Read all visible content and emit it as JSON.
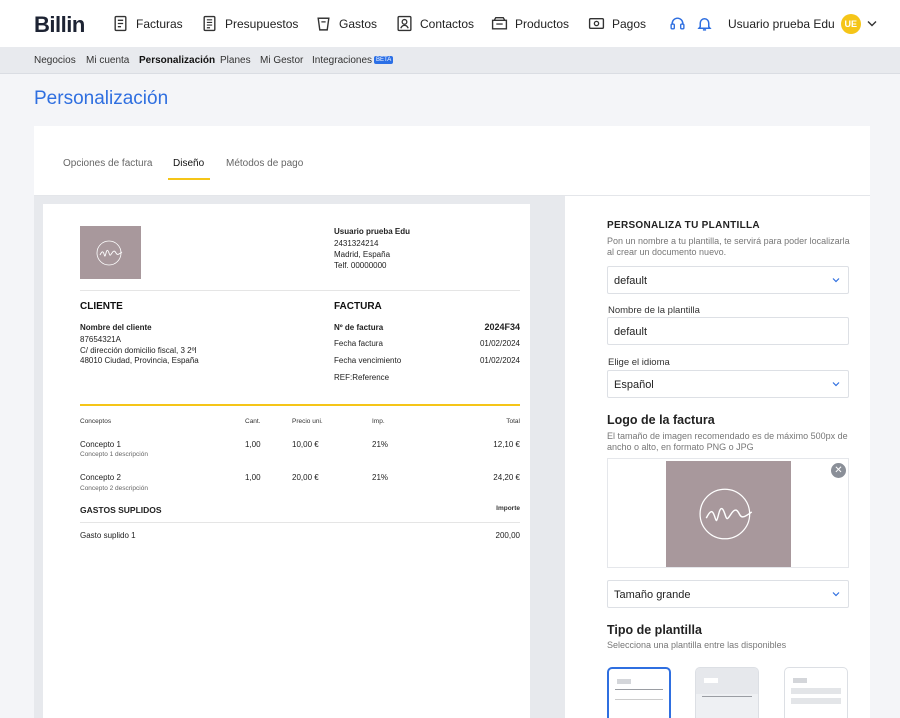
{
  "header": {
    "logo": "Billin",
    "nav": [
      {
        "label": "Facturas",
        "icon": "invoice-icon"
      },
      {
        "label": "Presupuestos",
        "icon": "quote-icon"
      },
      {
        "label": "Gastos",
        "icon": "expenses-icon"
      },
      {
        "label": "Contactos",
        "icon": "contacts-icon"
      },
      {
        "label": "Productos",
        "icon": "products-icon"
      },
      {
        "label": "Pagos",
        "icon": "payments-icon"
      }
    ],
    "user_name": "Usuario prueba Edu",
    "avatar_initials": "UE"
  },
  "subnav": {
    "items": [
      "Negocios",
      "Mi cuenta",
      "Personalización",
      "Planes",
      "Mi Gestor",
      "Integraciones"
    ],
    "active": "Personalización",
    "badge": "BETA"
  },
  "page": {
    "title": "Personalización"
  },
  "tabs": [
    "Opciones de factura",
    "Diseño",
    "Métodos de pago"
  ],
  "invoice": {
    "company": {
      "name": "Usuario prueba Edu",
      "id": "2431324214",
      "city": "Madrid, España",
      "phone": "Telf. 00000000"
    },
    "client_heading": "CLIENTE",
    "client": {
      "name": "Nombre del cliente",
      "nif": "87654321A",
      "address": "C/ dirección domicilio fiscal, 3 2ºI",
      "city": "48010 Ciudad, Provincia, España"
    },
    "invoice_heading": "FACTURA",
    "meta": {
      "number_label": "Nº de factura",
      "number": "2024F34",
      "date_label": "Fecha factura",
      "date": "01/02/2024",
      "due_label": "Fecha vencimiento",
      "due": "01/02/2024",
      "ref": "REF:Reference"
    },
    "columns": [
      "Conceptos",
      "Cant.",
      "Precio uni.",
      "Imp.",
      "Total"
    ],
    "rows": [
      {
        "concept": "Concepto 1",
        "desc": "Concepto 1 descripción",
        "qty": "1,00",
        "price": "10,00 €",
        "tax": "21%",
        "total": "12,10 €"
      },
      {
        "concept": "Concepto 2",
        "desc": "Concepto 2 descripción",
        "qty": "1,00",
        "price": "20,00 €",
        "tax": "21%",
        "total": "24,20 €"
      }
    ],
    "supplied": {
      "heading": "GASTOS SUPLIDOS",
      "amount_label": "Importe",
      "item": "Gasto suplido 1",
      "amount": "200,00"
    }
  },
  "panel": {
    "title": "PERSONALIZA TU PLANTILLA",
    "desc": "Pon un nombre a tu plantilla, te servirá para poder localizarla al crear un documento nuevo.",
    "template_select": "default",
    "name_label": "Nombre de la plantilla",
    "name_value": "default",
    "lang_label": "Elige el idioma",
    "lang_value": "Español",
    "logo_title": "Logo de la factura",
    "logo_desc": "El tamaño de imagen recomendado es de máximo 500px de ancho o alto, en formato PNG o JPG",
    "logo_size": "Tamaño grande",
    "tpl_title": "Tipo de plantilla",
    "tpl_desc": "Selecciona una plantilla entre las disponibles"
  },
  "colors": {
    "accent": "#2f6fe0",
    "highlight": "#f5c518",
    "logo_bg": "#a8989c"
  }
}
